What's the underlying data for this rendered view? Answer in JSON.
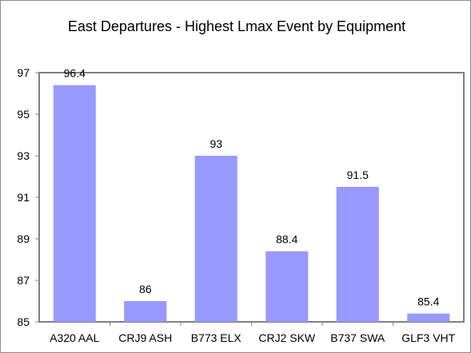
{
  "chart_data": {
    "type": "bar",
    "title": "East Departures - Highest Lmax Event by Equipment",
    "categories": [
      "A320 AAL",
      "CRJ9 ASH",
      "B773 ELX",
      "CRJ2 SKW",
      "B737 SWA",
      "GLF3 VHT"
    ],
    "values": [
      96.4,
      86,
      93,
      88.4,
      91.5,
      85.4
    ],
    "data_labels": [
      "96.4",
      "86",
      "93",
      "88.4",
      "91.5",
      "85.4"
    ],
    "ylim": [
      85,
      97
    ],
    "yticks": [
      85,
      87,
      89,
      91,
      93,
      95,
      97
    ],
    "xlabel": "",
    "ylabel": "",
    "grid": false,
    "legend": "none",
    "bar_color": "#9999ff",
    "axis_color": "#808080"
  }
}
